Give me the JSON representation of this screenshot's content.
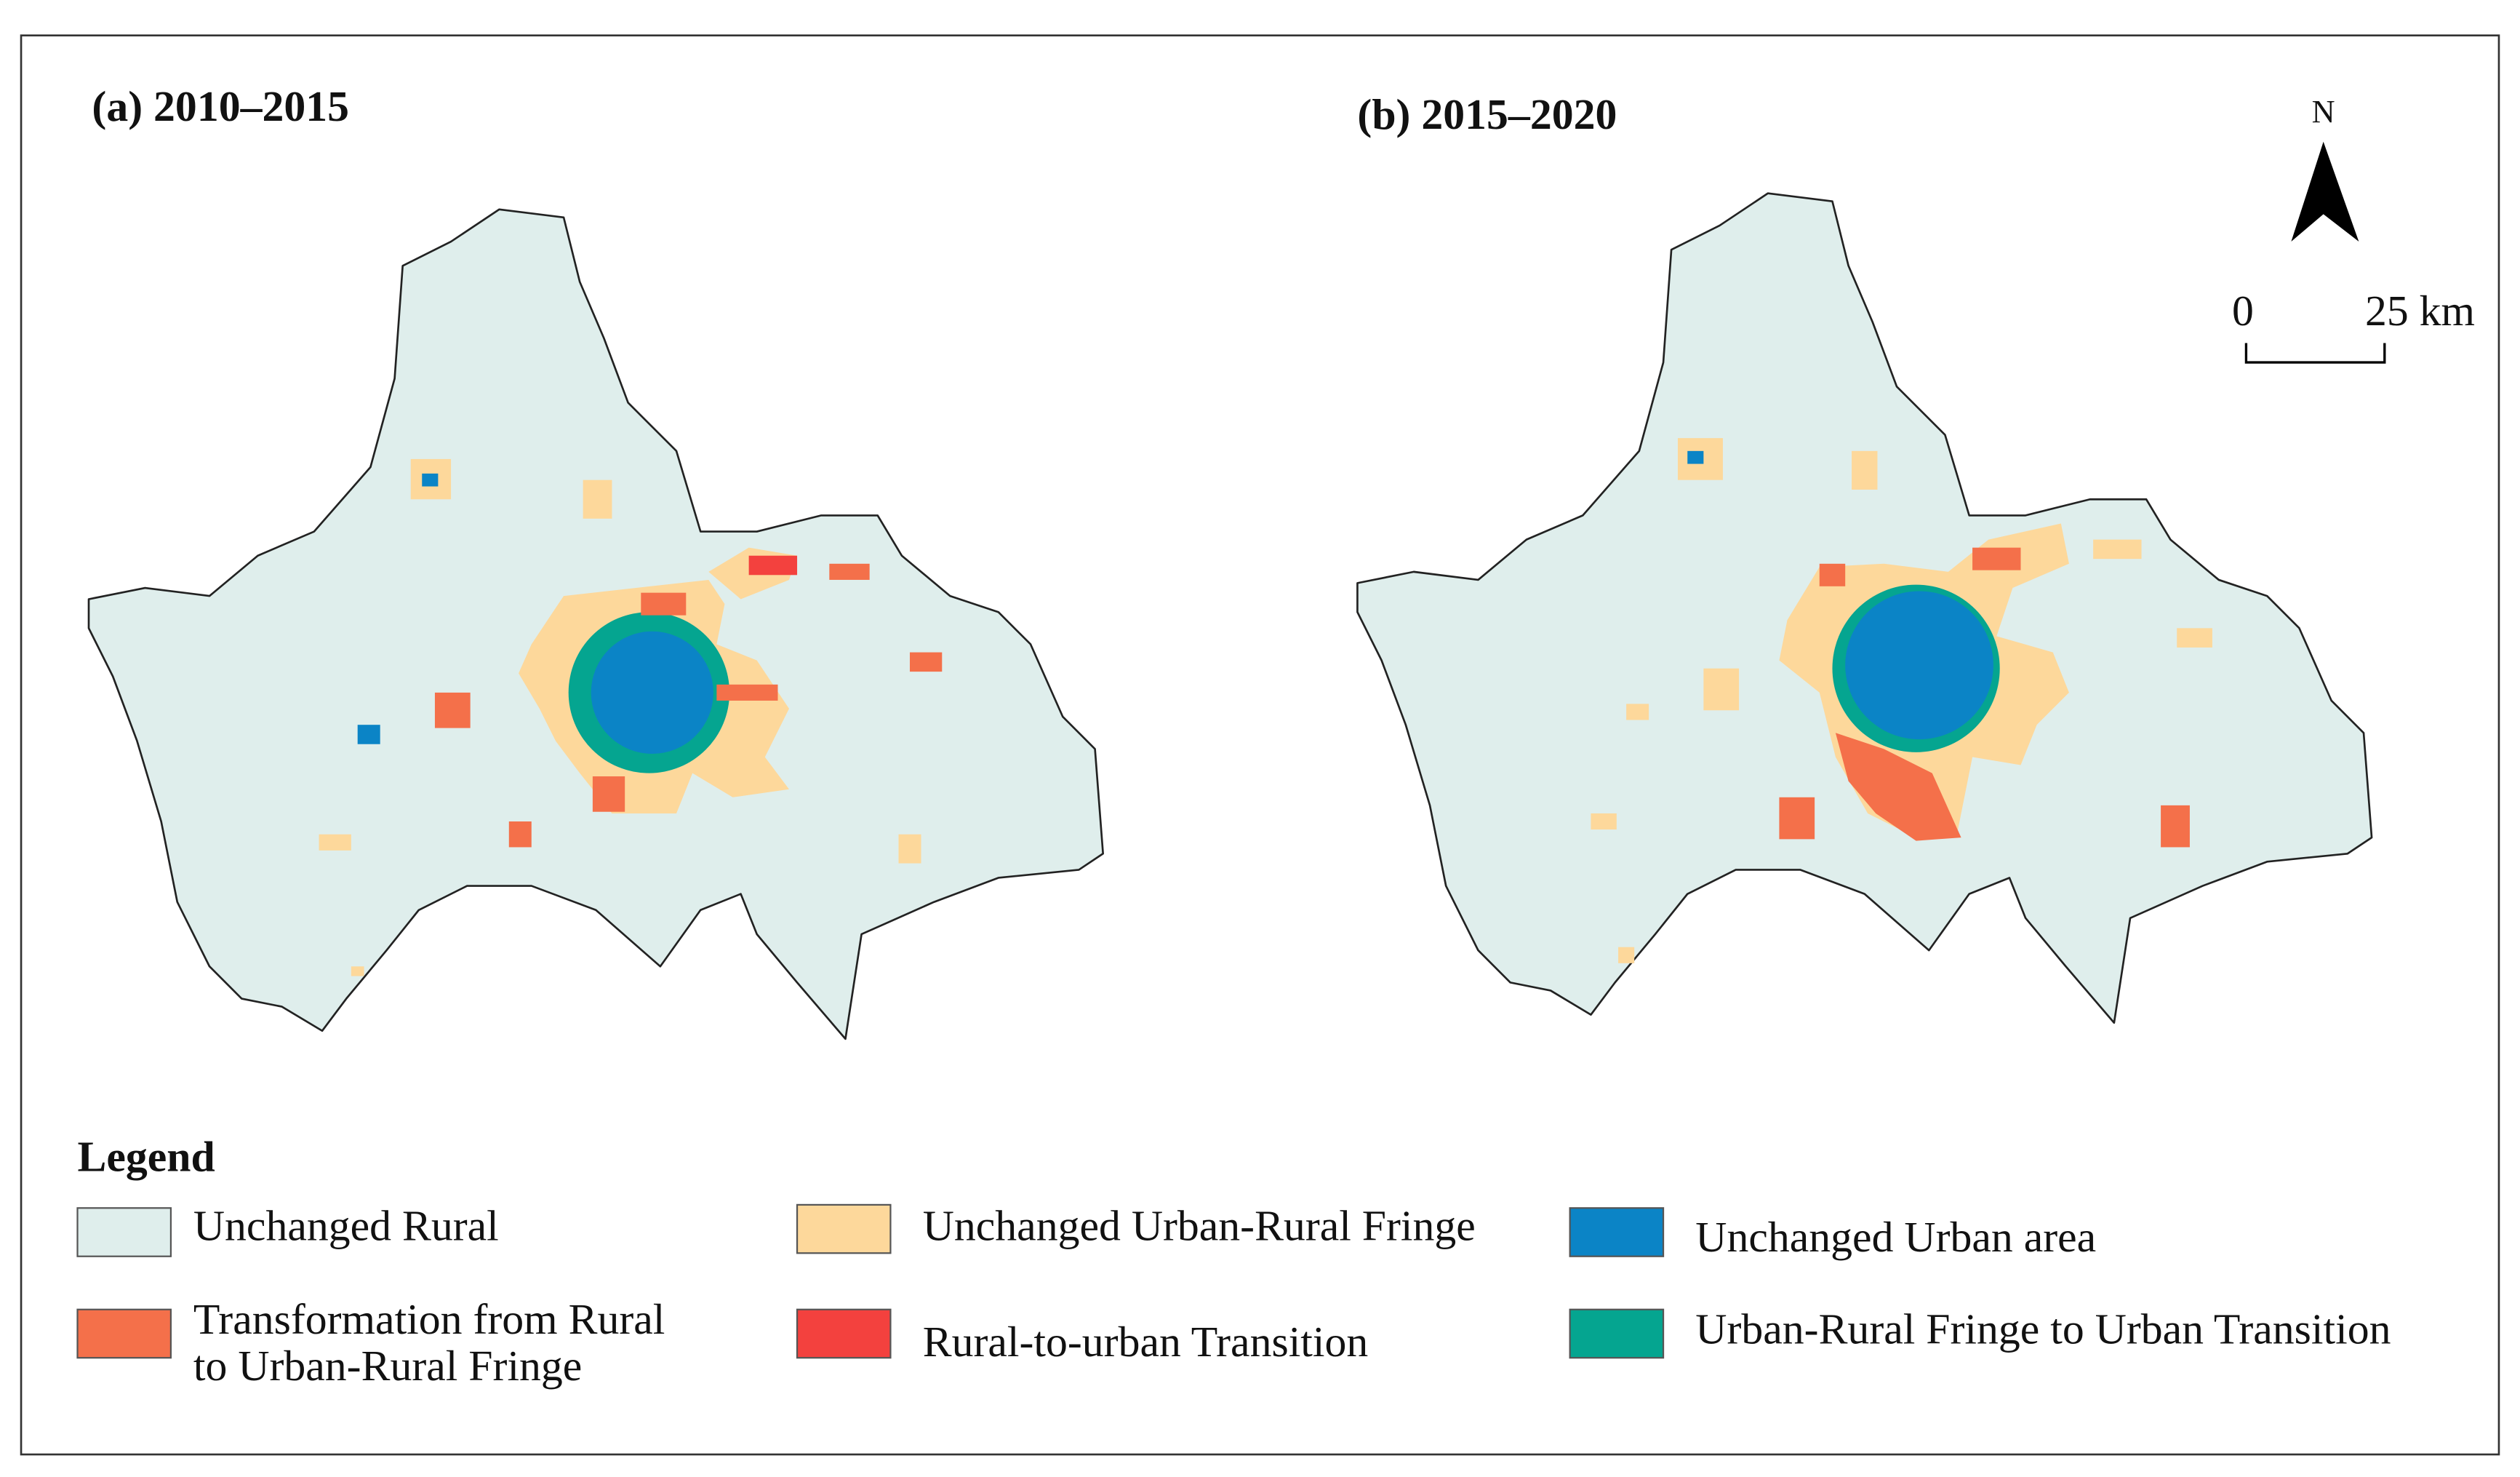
{
  "panels": [
    {
      "title": "(a) 2010–2015"
    },
    {
      "title": "(b) 2015–2020"
    }
  ],
  "north_arrow": {
    "label": "N"
  },
  "scale_bar": {
    "start": "0",
    "end": "25 km"
  },
  "legend": {
    "title": "Legend",
    "items": [
      {
        "label": [
          "Unchanged Rural"
        ],
        "color": "#dfeeec"
      },
      {
        "label": [
          "Unchanged Urban-Rural Fringe"
        ],
        "color": "#fdd89b"
      },
      {
        "label": [
          "Unchanged Urban area"
        ],
        "color": "#0b84c6"
      },
      {
        "label": [
          "Transformation from Rural",
          "to Urban-Rural Fringe"
        ],
        "color": "#f4704a"
      },
      {
        "label": [
          "Rural-to-urban Transition"
        ],
        "color": "#f3413e"
      },
      {
        "label": [
          "Urban-Rural Fringe to Urban Transition"
        ],
        "color": "#05a590"
      }
    ]
  }
}
